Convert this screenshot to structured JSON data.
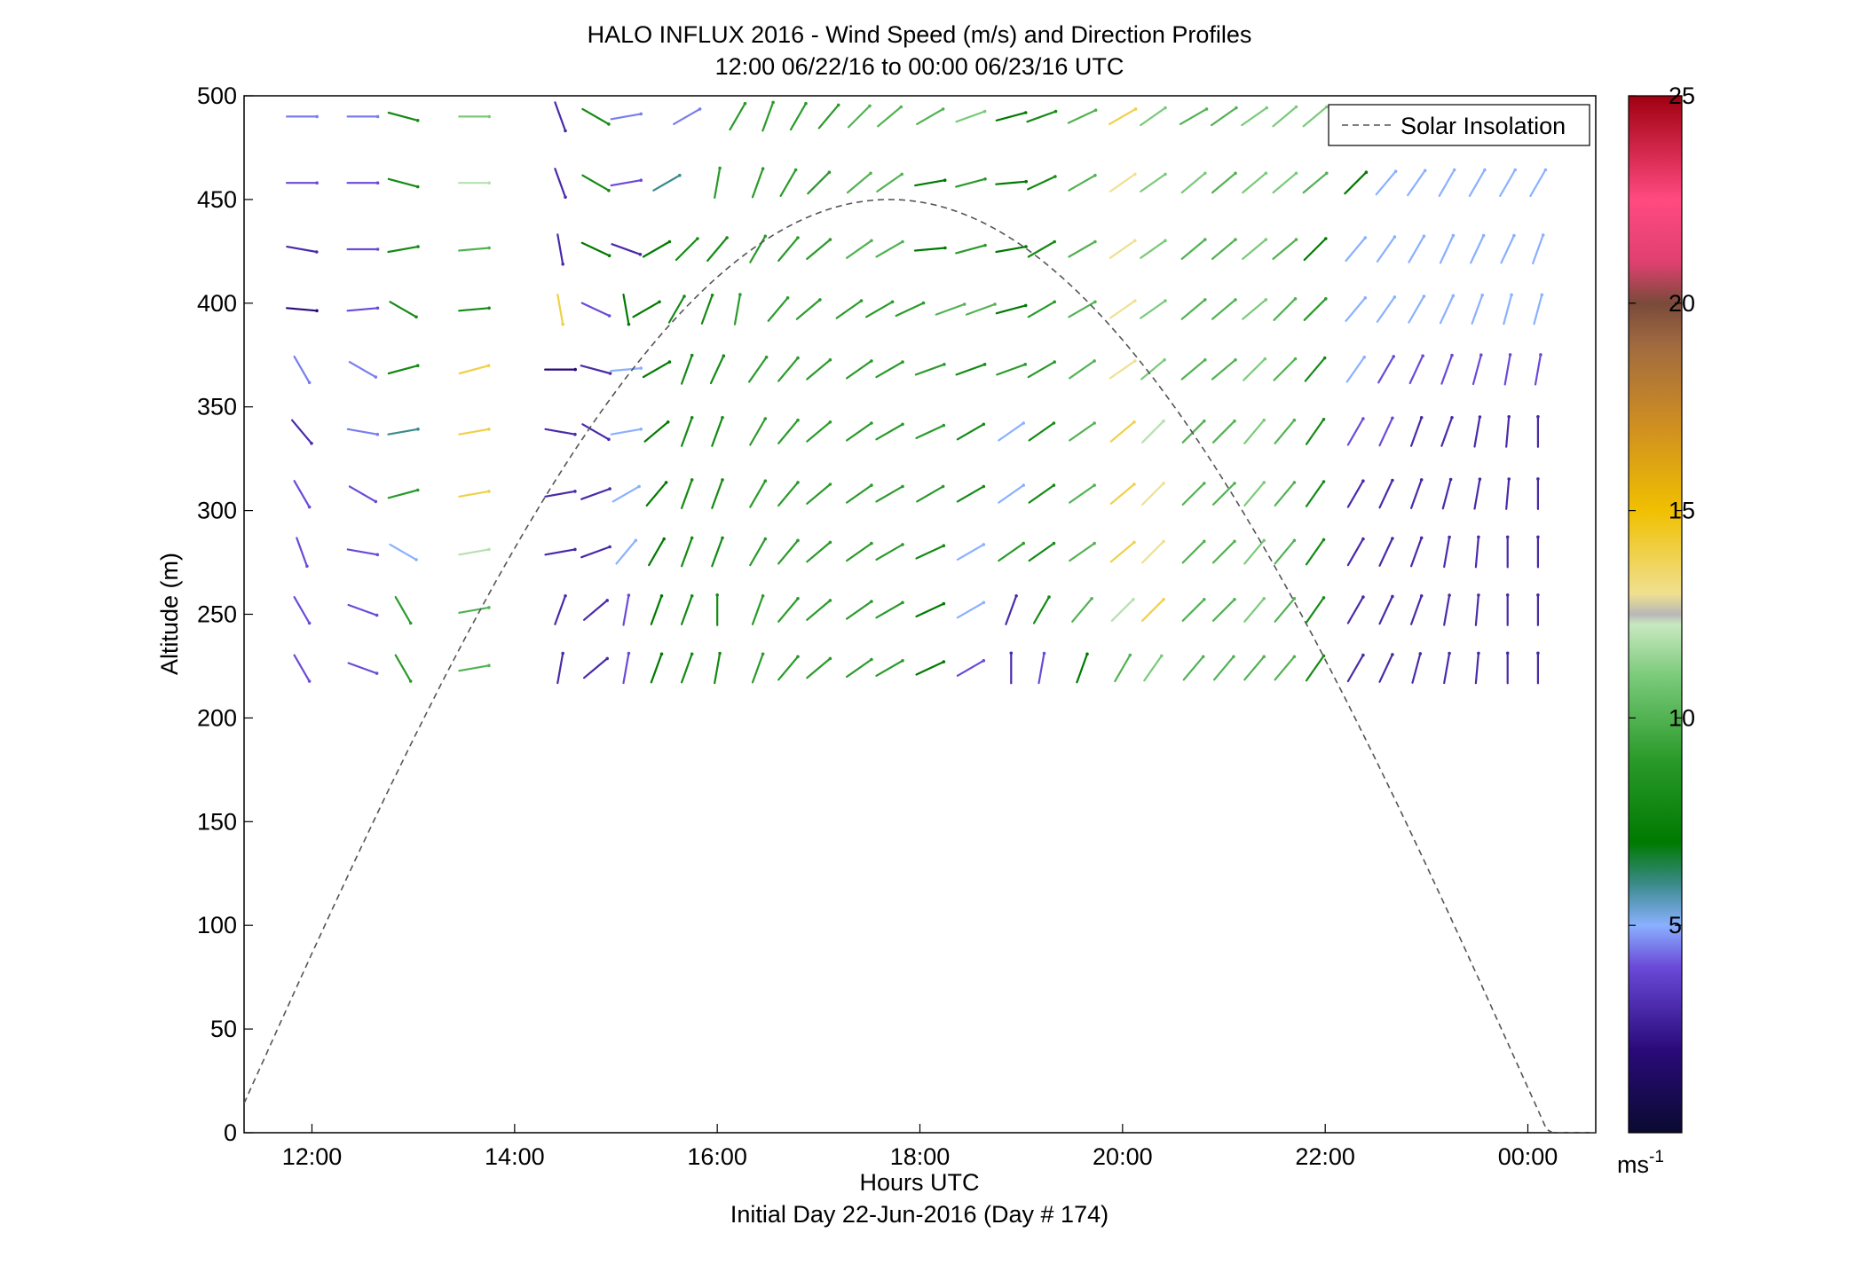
{
  "chart_data": {
    "type": "quiver",
    "title": "HALO INFLUX 2016 - Wind Speed (m/s) and Direction Profiles",
    "subtitle": "12:00 06/22/16 to 00:00 06/23/16  UTC",
    "xlabel": "Hours UTC",
    "footer": "Initial Day 22-Jun-2016 (Day # 174)",
    "ylabel": "Altitude (m)",
    "xlim": [
      11.33,
      24.67
    ],
    "ylim": [
      0,
      500
    ],
    "xticks": [
      {
        "value": 12,
        "label": "12:00"
      },
      {
        "value": 14,
        "label": "14:00"
      },
      {
        "value": 16,
        "label": "16:00"
      },
      {
        "value": 18,
        "label": "18:00"
      },
      {
        "value": 20,
        "label": "20:00"
      },
      {
        "value": 22,
        "label": "22:00"
      },
      {
        "value": 24,
        "label": "00:00"
      }
    ],
    "yticks": [
      0,
      50,
      100,
      150,
      200,
      250,
      300,
      350,
      400,
      450,
      500
    ],
    "colorbar": {
      "range": [
        0,
        25
      ],
      "ticks": [
        5,
        10,
        15,
        20,
        25
      ],
      "unit_label": "ms",
      "unit_exponent": "-1"
    },
    "legend": {
      "label": "Solar Insolation",
      "position": "top-right",
      "style": "dashed"
    },
    "solar_insolation": {
      "peak_time": 17.7,
      "peak_altitude": 450,
      "half_width": 6.5
    },
    "wind_rows": [
      {
        "altitude": 490,
        "times": [
          11.9,
          12.5,
          12.9,
          13.6,
          14.45,
          14.8,
          15.1,
          15.7,
          16.2,
          16.5,
          16.8,
          17.1,
          17.4,
          17.7,
          18.1,
          18.5,
          18.9,
          19.2,
          19.6,
          20.0,
          20.3,
          20.7,
          21.0,
          21.3,
          21.6,
          21.9,
          22.3,
          22.6
        ],
        "dirs": [
          90,
          90,
          105,
          90,
          160,
          120,
          80,
          60,
          30,
          20,
          30,
          40,
          45,
          50,
          60,
          70,
          75,
          70,
          65,
          60,
          55,
          60,
          55,
          55,
          50,
          50,
          45,
          45
        ],
        "speeds": [
          4.5,
          4.5,
          8,
          11,
          3,
          8,
          4.5,
          4.5,
          9,
          9,
          9,
          9,
          10,
          10,
          10,
          11,
          7,
          8,
          10,
          14,
          11,
          10,
          10,
          11,
          11,
          11,
          11,
          10
        ]
      },
      {
        "altitude": 458,
        "times": [
          11.9,
          12.5,
          12.9,
          13.6,
          14.45,
          14.8,
          15.1,
          15.5,
          16.0,
          16.4,
          16.7,
          17.0,
          17.4,
          17.7,
          18.1,
          18.5,
          18.9,
          19.2,
          19.6,
          20.0,
          20.3,
          20.7,
          21.0,
          21.3,
          21.6,
          21.9,
          22.3,
          22.6,
          22.9,
          23.2,
          23.5,
          23.8,
          24.1
        ],
        "dirs": [
          90,
          90,
          105,
          90,
          160,
          120,
          80,
          60,
          10,
          20,
          30,
          45,
          50,
          55,
          80,
          75,
          85,
          65,
          60,
          55,
          55,
          50,
          50,
          50,
          50,
          50,
          45,
          40,
          35,
          30,
          30,
          30,
          30
        ],
        "speeds": [
          4,
          4,
          8,
          12,
          3,
          8,
          4,
          6,
          9,
          9,
          9,
          9,
          10,
          10,
          7,
          9,
          7,
          8,
          10,
          13,
          11,
          11,
          10,
          11,
          11,
          10,
          7,
          5,
          5,
          5,
          5,
          5,
          5
        ]
      },
      {
        "altitude": 426,
        "times": [
          11.9,
          12.5,
          12.9,
          13.6,
          14.45,
          14.8,
          15.1,
          15.4,
          15.7,
          16.0,
          16.4,
          16.7,
          17.0,
          17.4,
          17.7,
          18.1,
          18.5,
          18.9,
          19.2,
          19.6,
          20.0,
          20.3,
          20.7,
          21.0,
          21.3,
          21.6,
          21.9,
          22.3,
          22.6,
          22.9,
          23.2,
          23.5,
          23.8,
          24.1
        ],
        "dirs": [
          100,
          90,
          80,
          85,
          170,
          115,
          110,
          60,
          45,
          40,
          30,
          40,
          50,
          55,
          60,
          85,
          75,
          80,
          60,
          60,
          55,
          55,
          50,
          50,
          50,
          50,
          45,
          40,
          35,
          30,
          25,
          25,
          25,
          20
        ],
        "speeds": [
          3,
          4,
          8,
          10,
          3,
          7,
          3,
          7,
          8,
          8,
          9,
          9,
          9,
          10,
          10,
          7,
          9,
          7,
          8,
          10,
          13,
          11,
          10,
          10,
          11,
          10,
          7,
          5,
          5,
          5,
          5,
          5,
          5,
          5
        ]
      },
      {
        "altitude": 397,
        "times": [
          11.9,
          12.5,
          12.9,
          13.6,
          14.45,
          14.8,
          15.1,
          15.3,
          15.6,
          15.9,
          16.2,
          16.6,
          16.9,
          17.3,
          17.6,
          17.9,
          18.3,
          18.6,
          18.9,
          19.2,
          19.6,
          20.0,
          20.3,
          20.7,
          21.0,
          21.3,
          21.6,
          21.9,
          22.3,
          22.6,
          22.9,
          23.2,
          23.5,
          23.8,
          24.1
        ],
        "dirs": [
          95,
          85,
          120,
          85,
          170,
          115,
          170,
          60,
          30,
          20,
          10,
          40,
          50,
          55,
          60,
          65,
          70,
          70,
          75,
          60,
          60,
          55,
          55,
          50,
          50,
          50,
          45,
          45,
          40,
          35,
          30,
          25,
          20,
          15,
          15
        ],
        "speeds": [
          2,
          4,
          8,
          8,
          14,
          4,
          7,
          7,
          8,
          8,
          9,
          9,
          9,
          9,
          9,
          9,
          10,
          10,
          7,
          9,
          10,
          13,
          11,
          10,
          10,
          11,
          10,
          9,
          5,
          5,
          5,
          5,
          5,
          5,
          5
        ]
      },
      {
        "altitude": 368,
        "times": [
          11.9,
          12.5,
          12.9,
          13.6,
          14.45,
          14.8,
          15.1,
          15.4,
          15.7,
          16.0,
          16.4,
          16.7,
          17.0,
          17.4,
          17.7,
          18.1,
          18.5,
          18.9,
          19.2,
          19.6,
          20.0,
          20.3,
          20.7,
          21.0,
          21.3,
          21.6,
          21.9,
          22.3,
          22.6,
          22.9,
          23.2,
          23.5,
          23.8,
          24.1
        ],
        "dirs": [
          150,
          120,
          75,
          75,
          90,
          105,
          85,
          60,
          20,
          25,
          35,
          40,
          50,
          55,
          60,
          70,
          70,
          70,
          60,
          55,
          55,
          50,
          50,
          50,
          45,
          45,
          40,
          35,
          30,
          25,
          20,
          15,
          10,
          10
        ],
        "speeds": [
          4.5,
          4.5,
          8,
          14,
          2,
          3,
          5,
          7,
          8,
          8,
          9,
          9,
          9,
          9,
          9,
          9,
          8,
          9,
          9,
          10,
          13,
          11,
          10,
          10,
          11,
          10,
          8,
          5,
          4,
          4,
          4,
          4,
          4,
          4
        ]
      },
      {
        "altitude": 338,
        "times": [
          11.9,
          12.5,
          12.9,
          13.6,
          14.45,
          14.8,
          15.1,
          15.4,
          15.7,
          16.0,
          16.4,
          16.7,
          17.0,
          17.4,
          17.7,
          18.1,
          18.5,
          18.9,
          19.2,
          19.6,
          20.0,
          20.3,
          20.7,
          21.0,
          21.3,
          21.6,
          21.9,
          22.3,
          22.6,
          22.9,
          23.2,
          23.5,
          23.8,
          24.1
        ],
        "dirs": [
          140,
          100,
          80,
          80,
          100,
          120,
          80,
          50,
          20,
          20,
          30,
          40,
          50,
          55,
          60,
          65,
          60,
          55,
          55,
          55,
          50,
          45,
          45,
          45,
          40,
          40,
          35,
          30,
          25,
          20,
          20,
          10,
          5,
          0
        ],
        "speeds": [
          3,
          4.5,
          6,
          14,
          3,
          3,
          5,
          7,
          8,
          8,
          9,
          9,
          9,
          9,
          9,
          9,
          8,
          5,
          8,
          10,
          14,
          12,
          10,
          10,
          11,
          10,
          8,
          4,
          4,
          3,
          3,
          3,
          3,
          3
        ]
      },
      {
        "altitude": 308,
        "times": [
          11.9,
          12.5,
          12.9,
          13.6,
          14.45,
          14.8,
          15.1,
          15.4,
          15.7,
          16.0,
          16.4,
          16.7,
          17.0,
          17.4,
          17.7,
          18.1,
          18.5,
          18.9,
          19.2,
          19.6,
          20.0,
          20.3,
          20.7,
          21.0,
          21.3,
          21.6,
          21.9,
          22.3,
          22.6,
          22.9,
          23.2,
          23.5,
          23.8,
          24.1
        ],
        "dirs": [
          150,
          120,
          75,
          80,
          80,
          70,
          60,
          40,
          20,
          20,
          30,
          40,
          50,
          55,
          60,
          60,
          60,
          55,
          55,
          55,
          50,
          45,
          45,
          45,
          40,
          40,
          35,
          30,
          25,
          20,
          15,
          10,
          5,
          0
        ],
        "speeds": [
          4,
          4,
          9,
          14,
          3,
          3,
          5,
          7,
          8,
          8,
          9,
          9,
          9,
          9,
          9,
          9,
          8,
          5,
          8,
          10,
          14,
          13,
          10,
          10,
          11,
          10,
          8,
          3,
          3,
          3,
          3,
          3,
          3,
          3
        ]
      },
      {
        "altitude": 280,
        "times": [
          11.9,
          12.5,
          12.9,
          13.6,
          14.45,
          14.8,
          15.1,
          15.4,
          15.7,
          16.0,
          16.4,
          16.7,
          17.0,
          17.4,
          17.7,
          18.1,
          18.5,
          18.9,
          19.2,
          19.6,
          20.0,
          20.3,
          20.7,
          21.0,
          21.3,
          21.6,
          21.9,
          22.3,
          22.6,
          22.9,
          23.2,
          23.5,
          23.8,
          24.1
        ],
        "dirs": [
          160,
          100,
          120,
          80,
          80,
          70,
          40,
          30,
          20,
          20,
          30,
          40,
          50,
          55,
          60,
          65,
          60,
          55,
          55,
          55,
          50,
          45,
          45,
          45,
          40,
          40,
          35,
          30,
          25,
          20,
          10,
          5,
          0,
          0
        ],
        "speeds": [
          4,
          4,
          5,
          12,
          3,
          3,
          5,
          7,
          8,
          8,
          9,
          9,
          9,
          9,
          9,
          8,
          5,
          9,
          8,
          10,
          14,
          13,
          10,
          10,
          11,
          10,
          8,
          3,
          3,
          3,
          3,
          3,
          3,
          3
        ]
      },
      {
        "altitude": 252,
        "times": [
          11.9,
          12.5,
          12.9,
          13.6,
          14.45,
          14.8,
          15.1,
          15.4,
          15.7,
          16.0,
          16.4,
          16.7,
          17.0,
          17.4,
          17.7,
          18.1,
          18.5,
          18.9,
          19.2,
          19.6,
          20.0,
          20.3,
          20.7,
          21.0,
          21.3,
          21.6,
          21.9,
          22.3,
          22.6,
          22.9,
          23.2,
          23.5,
          23.8,
          24.1
        ],
        "dirs": [
          150,
          110,
          150,
          80,
          20,
          50,
          10,
          20,
          20,
          0,
          20,
          40,
          50,
          55,
          60,
          65,
          60,
          20,
          30,
          40,
          45,
          45,
          45,
          45,
          40,
          40,
          35,
          30,
          25,
          20,
          10,
          5,
          0,
          0
        ],
        "speeds": [
          4,
          4,
          9,
          10,
          3,
          3,
          4,
          7,
          8,
          8,
          9,
          9,
          9,
          9,
          9,
          7,
          5,
          3,
          8,
          10,
          12,
          14,
          10,
          10,
          11,
          10,
          8,
          3,
          3,
          3,
          3,
          3,
          3,
          3
        ]
      },
      {
        "altitude": 224,
        "times": [
          11.9,
          12.5,
          12.9,
          13.6,
          14.45,
          14.8,
          15.1,
          15.4,
          15.7,
          16.0,
          16.4,
          16.7,
          17.0,
          17.4,
          17.7,
          18.1,
          18.5,
          18.9,
          19.2,
          19.6,
          20.0,
          20.3,
          20.7,
          21.0,
          21.3,
          21.6,
          21.9,
          22.3,
          22.6,
          22.9,
          23.2,
          23.5,
          23.8,
          24.1
        ],
        "dirs": [
          150,
          110,
          150,
          80,
          10,
          50,
          10,
          20,
          20,
          10,
          20,
          40,
          50,
          55,
          60,
          65,
          60,
          0,
          10,
          20,
          30,
          35,
          40,
          40,
          40,
          40,
          35,
          30,
          25,
          15,
          10,
          5,
          0,
          0
        ],
        "speeds": [
          4,
          4,
          9,
          10,
          3,
          3,
          4,
          7,
          8,
          8,
          9,
          9,
          9,
          9,
          9,
          7,
          4,
          3,
          4,
          7,
          10,
          11,
          10,
          10,
          10,
          10,
          8,
          3,
          3,
          3,
          3,
          3,
          3,
          3
        ]
      }
    ]
  }
}
